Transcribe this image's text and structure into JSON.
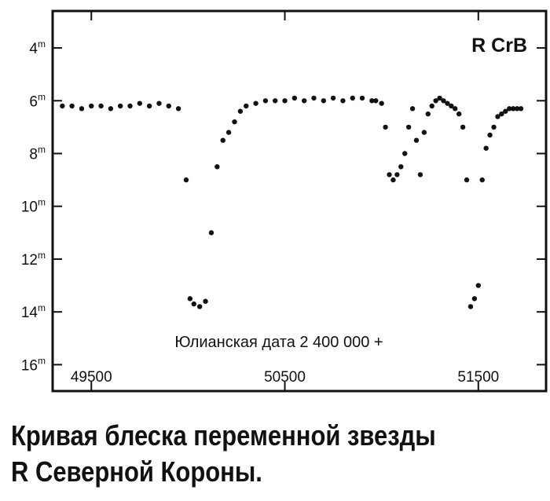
{
  "chart_data": {
    "type": "scatter",
    "title": "R CrB",
    "xlabel": "Юлианская дата 2 400 000 +",
    "ylabel": "",
    "xlim": [
      49300,
      51850
    ],
    "ylim": [
      17,
      2.6
    ],
    "y_inverted": true,
    "x_ticks": [
      49500,
      50500,
      51500
    ],
    "x_tick_labels": [
      "49500",
      "50500",
      "51500"
    ],
    "y_ticks": [
      4,
      6,
      8,
      10,
      12,
      14,
      16
    ],
    "y_tick_labels": [
      {
        "value": "4",
        "unit": "m"
      },
      {
        "value": "6",
        "unit": "m"
      },
      {
        "value": "8",
        "unit": "m"
      },
      {
        "value": "10",
        "unit": "m"
      },
      {
        "value": "12",
        "unit": "m"
      },
      {
        "value": "14",
        "unit": "m"
      },
      {
        "value": "16",
        "unit": "m"
      }
    ],
    "grid": false,
    "marker_color": "#111111",
    "series": [
      {
        "x": [
          49350,
          49400,
          49450,
          49500,
          49550,
          49600,
          49650,
          49700,
          49750,
          49800,
          49850,
          49900,
          49950,
          49990,
          50010,
          50030,
          50060,
          50090,
          50120,
          50150,
          50180,
          50210,
          50240,
          50270,
          50300,
          50350,
          50400,
          50450,
          50500,
          50550,
          50600,
          50650,
          50700,
          50750,
          50800,
          50850,
          50900,
          50950,
          50970,
          51000,
          51020,
          51040,
          51060,
          51080,
          51100,
          51120,
          51140,
          51160,
          51180,
          51200,
          51220,
          51240,
          51260,
          51280,
          51300,
          51320,
          51340,
          51360,
          51380,
          51400,
          51420,
          51440,
          51460,
          51480,
          51500,
          51520,
          51540,
          51560,
          51580,
          51600,
          51620,
          51640,
          51660,
          51680,
          51700,
          51720
        ],
        "y": [
          6.2,
          6.2,
          6.3,
          6.2,
          6.2,
          6.3,
          6.2,
          6.2,
          6.1,
          6.2,
          6.1,
          6.2,
          6.3,
          9.0,
          13.5,
          13.7,
          13.8,
          13.6,
          11.0,
          8.5,
          7.5,
          7.2,
          6.8,
          6.4,
          6.2,
          6.1,
          6.0,
          6.0,
          6.0,
          5.9,
          6.0,
          5.9,
          6.0,
          5.9,
          6.0,
          5.9,
          5.9,
          6.0,
          6.0,
          6.1,
          7.0,
          8.8,
          9.0,
          8.8,
          8.5,
          8.0,
          7.0,
          6.3,
          7.5,
          8.8,
          7.2,
          6.5,
          6.2,
          6.0,
          5.9,
          6.0,
          6.1,
          6.2,
          6.3,
          6.5,
          7.0,
          9.0,
          13.8,
          13.5,
          13.0,
          9.0,
          7.8,
          7.3,
          7.0,
          6.6,
          6.5,
          6.4,
          6.3,
          6.3,
          6.3,
          6.3
        ]
      }
    ]
  },
  "caption": {
    "line1": "Кривая блеска переменной звезды",
    "line2": "R Северной Короны."
  }
}
